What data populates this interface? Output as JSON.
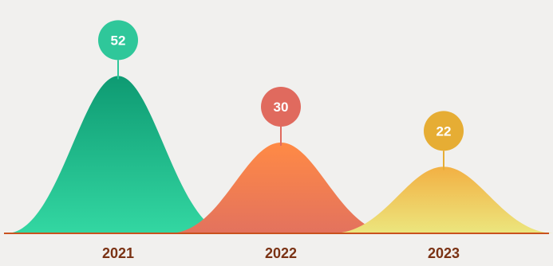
{
  "chart_data": {
    "type": "area",
    "categories": [
      "2021",
      "2022",
      "2023"
    ],
    "values": [
      52,
      30,
      22
    ],
    "bubble_colors": [
      "#2fc79a",
      "#e06a5e",
      "#e6ad34"
    ],
    "fill_gradients": [
      {
        "top": "#0e9a72",
        "bottom": "#33d7a2"
      },
      {
        "top": "#ff8a45",
        "bottom": "#e3725e"
      },
      {
        "top": "#f2b043",
        "bottom": "#ece67e"
      }
    ],
    "baseline_color": "#c9521e",
    "label_color": "#7a3214",
    "ylim": [
      0,
      65
    ],
    "grid": false,
    "title": "",
    "xlabel": "",
    "ylabel": ""
  }
}
